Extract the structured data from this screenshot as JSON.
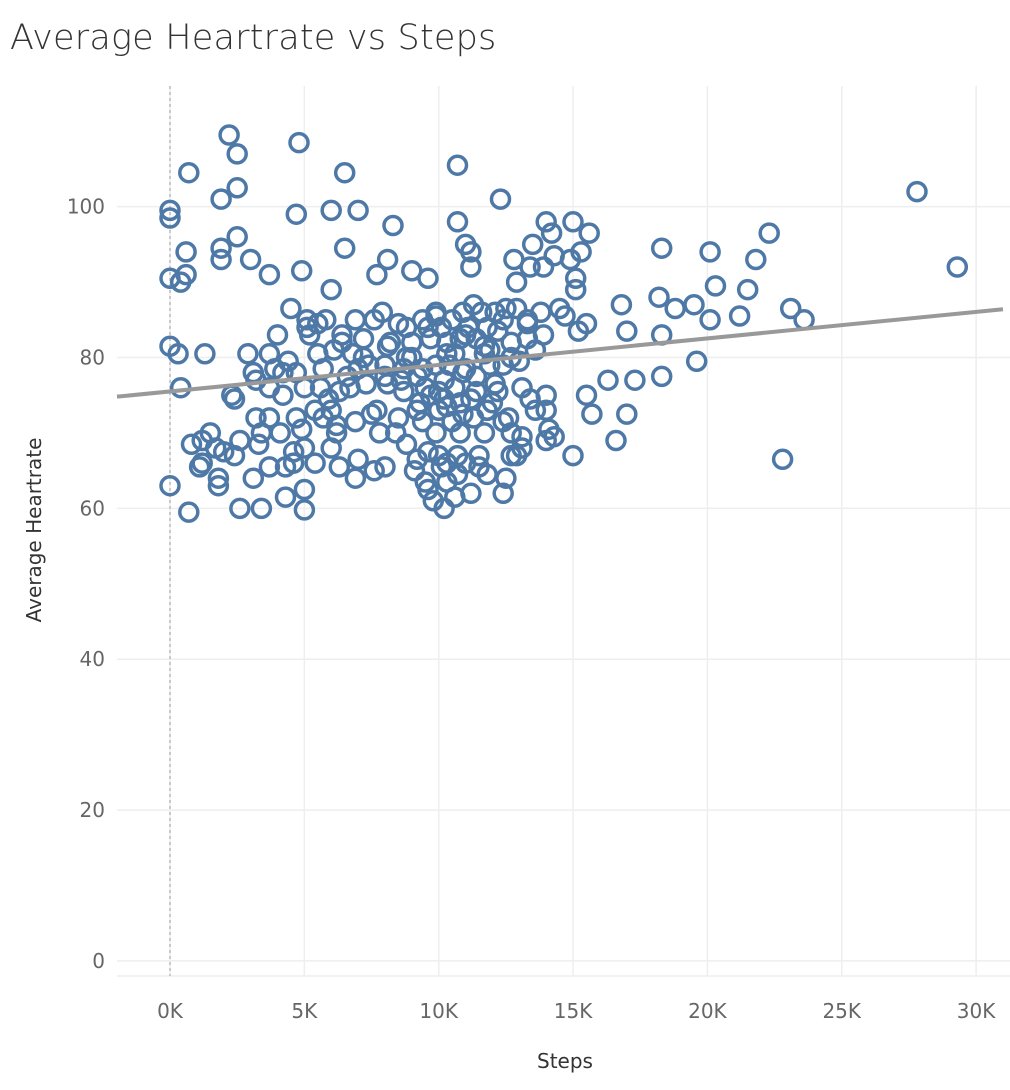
{
  "chart_data": {
    "type": "scatter",
    "title": "Average Heartrate vs Steps",
    "xlabel": "Steps",
    "ylabel": "Average Heartrate",
    "xlim": [
      -2000,
      31000
    ],
    "ylim": [
      -2,
      116
    ],
    "x_ticks": [
      {
        "value": 0,
        "label": "0K"
      },
      {
        "value": 5000,
        "label": "5K"
      },
      {
        "value": 10000,
        "label": "10K"
      },
      {
        "value": 15000,
        "label": "15K"
      },
      {
        "value": 20000,
        "label": "20K"
      },
      {
        "value": 25000,
        "label": "25K"
      },
      {
        "value": 30000,
        "label": "30K"
      }
    ],
    "y_ticks": [
      {
        "value": 0,
        "label": "0"
      },
      {
        "value": 20,
        "label": "20"
      },
      {
        "value": 40,
        "label": "40"
      },
      {
        "value": 60,
        "label": "60"
      },
      {
        "value": 80,
        "label": "80"
      },
      {
        "value": 100,
        "label": "100"
      }
    ],
    "grid": true,
    "zero_line_x": 0,
    "marker": "hollow-circle",
    "colors": {
      "marker": "#4e79a7",
      "trend": "#999999",
      "grid": "#eeeeee",
      "zero_line": "#bbbbbb"
    },
    "trend_line": [
      {
        "x": -2000,
        "y": 74.8
      },
      {
        "x": 31000,
        "y": 86.4
      }
    ],
    "points": [
      [
        2200,
        109.5
      ],
      [
        4800,
        108.5
      ],
      [
        2500,
        107
      ],
      [
        6500,
        104.5
      ],
      [
        700,
        104.5
      ],
      [
        10700,
        105.5
      ],
      [
        27800,
        102
      ],
      [
        2500,
        102.5
      ],
      [
        1900,
        101
      ],
      [
        12300,
        101
      ],
      [
        0,
        99.5
      ],
      [
        0,
        98.5
      ],
      [
        4700,
        99
      ],
      [
        6000,
        99.5
      ],
      [
        7000,
        99.5
      ],
      [
        10700,
        98
      ],
      [
        8300,
        97.5
      ],
      [
        14000,
        98
      ],
      [
        15000,
        98
      ],
      [
        2500,
        96
      ],
      [
        14200,
        96.5
      ],
      [
        15600,
        96.5
      ],
      [
        22300,
        96.5
      ],
      [
        11000,
        95
      ],
      [
        13500,
        95
      ],
      [
        600,
        94
      ],
      [
        1900,
        94.5
      ],
      [
        6500,
        94.5
      ],
      [
        1900,
        93
      ],
      [
        3000,
        93
      ],
      [
        8100,
        93
      ],
      [
        11200,
        94
      ],
      [
        12800,
        93
      ],
      [
        14300,
        93.5
      ],
      [
        15300,
        94
      ],
      [
        18300,
        94.5
      ],
      [
        20100,
        94
      ],
      [
        11200,
        92
      ],
      [
        13400,
        92
      ],
      [
        13900,
        92
      ],
      [
        14900,
        93
      ],
      [
        21800,
        93
      ],
      [
        29300,
        92
      ],
      [
        3700,
        91
      ],
      [
        4900,
        91.5
      ],
      [
        7700,
        91
      ],
      [
        9000,
        91.5
      ],
      [
        9600,
        90.5
      ],
      [
        0,
        90.5
      ],
      [
        400,
        90
      ],
      [
        600,
        91
      ],
      [
        15100,
        90.5
      ],
      [
        12900,
        90
      ],
      [
        15100,
        89
      ],
      [
        20300,
        89.5
      ],
      [
        21500,
        89
      ],
      [
        6000,
        89
      ],
      [
        4500,
        86.5
      ],
      [
        11300,
        87
      ],
      [
        11600,
        86
      ],
      [
        12500,
        86.5
      ],
      [
        12900,
        86.5
      ],
      [
        13800,
        86
      ],
      [
        14500,
        86.5
      ],
      [
        16800,
        87
      ],
      [
        18200,
        88
      ],
      [
        18800,
        86.5
      ],
      [
        19500,
        87
      ],
      [
        23100,
        86.5
      ],
      [
        5100,
        85
      ],
      [
        5500,
        84.5
      ],
      [
        5800,
        85
      ],
      [
        6900,
        85
      ],
      [
        7900,
        86
      ],
      [
        8500,
        84.5
      ],
      [
        9400,
        85
      ],
      [
        9900,
        85.5
      ],
      [
        10500,
        85
      ],
      [
        11100,
        84
      ],
      [
        12400,
        85
      ],
      [
        13300,
        84.5
      ],
      [
        15500,
        84.5
      ],
      [
        21200,
        85.5
      ],
      [
        20100,
        85
      ],
      [
        23600,
        85
      ],
      [
        3700,
        80.5
      ],
      [
        2900,
        80.5
      ],
      [
        1300,
        80.5
      ],
      [
        0,
        81.5
      ],
      [
        300,
        80.5
      ],
      [
        4000,
        83
      ],
      [
        5200,
        83
      ],
      [
        6400,
        82
      ],
      [
        7200,
        82.5
      ],
      [
        8200,
        82
      ],
      [
        9000,
        82
      ],
      [
        9700,
        82.5
      ],
      [
        10300,
        82
      ],
      [
        10800,
        82.5
      ],
      [
        11400,
        82.5
      ],
      [
        11900,
        81
      ],
      [
        12700,
        82
      ],
      [
        13300,
        82.5
      ],
      [
        13900,
        83
      ],
      [
        15200,
        83.5
      ],
      [
        17000,
        83.5
      ],
      [
        18300,
        83
      ],
      [
        19600,
        79.5
      ],
      [
        3200,
        77
      ],
      [
        3900,
        78.5
      ],
      [
        4400,
        79.5
      ],
      [
        4700,
        78
      ],
      [
        5700,
        78.5
      ],
      [
        6600,
        77.5
      ],
      [
        7400,
        79
      ],
      [
        8000,
        79
      ],
      [
        8700,
        78.5
      ],
      [
        9400,
        78.5
      ],
      [
        9900,
        79
      ],
      [
        10400,
        79
      ],
      [
        11000,
        78.5
      ],
      [
        11900,
        79
      ],
      [
        12400,
        79
      ],
      [
        13000,
        79.5
      ],
      [
        16300,
        77
      ],
      [
        17300,
        77
      ],
      [
        18300,
        77.5
      ],
      [
        400,
        76
      ],
      [
        2300,
        75
      ],
      [
        3700,
        76
      ],
      [
        4200,
        75
      ],
      [
        5000,
        76
      ],
      [
        5600,
        76
      ],
      [
        6300,
        75.5
      ],
      [
        7300,
        76.5
      ],
      [
        8100,
        76.5
      ],
      [
        8700,
        75.5
      ],
      [
        9500,
        76
      ],
      [
        10000,
        75.5
      ],
      [
        10600,
        76
      ],
      [
        11400,
        75.5
      ],
      [
        12200,
        75.5
      ],
      [
        14000,
        75
      ],
      [
        15500,
        75
      ],
      [
        2400,
        74.5
      ],
      [
        5400,
        73
      ],
      [
        6000,
        73
      ],
      [
        7500,
        72.5
      ],
      [
        8500,
        72
      ],
      [
        9200,
        73
      ],
      [
        10000,
        73
      ],
      [
        10900,
        72.5
      ],
      [
        11800,
        73
      ],
      [
        12600,
        72
      ],
      [
        13600,
        73
      ],
      [
        14000,
        73
      ],
      [
        15700,
        72.5
      ],
      [
        17000,
        72.5
      ],
      [
        3700,
        72
      ],
      [
        1500,
        70
      ],
      [
        1200,
        69
      ],
      [
        2600,
        69
      ],
      [
        3400,
        70
      ],
      [
        4100,
        70
      ],
      [
        4900,
        70.5
      ],
      [
        6200,
        70
      ],
      [
        7800,
        70
      ],
      [
        8400,
        70
      ],
      [
        9900,
        70
      ],
      [
        10800,
        70
      ],
      [
        11700,
        70
      ],
      [
        12700,
        70
      ],
      [
        13100,
        69.5
      ],
      [
        14300,
        69.5
      ],
      [
        16600,
        69
      ],
      [
        800,
        68.5
      ],
      [
        1700,
        68
      ],
      [
        3300,
        68.5
      ],
      [
        5000,
        68
      ],
      [
        6000,
        68
      ],
      [
        8800,
        68.5
      ],
      [
        9600,
        67.5
      ],
      [
        10700,
        67
      ],
      [
        11500,
        67
      ],
      [
        12900,
        67
      ],
      [
        15000,
        67
      ],
      [
        22800,
        66.5
      ],
      [
        1200,
        66
      ],
      [
        2400,
        67
      ],
      [
        3700,
        65.5
      ],
      [
        4600,
        66
      ],
      [
        5400,
        66
      ],
      [
        6300,
        65.5
      ],
      [
        7000,
        66.5
      ],
      [
        8000,
        65.5
      ],
      [
        9100,
        65
      ],
      [
        10100,
        65.5
      ],
      [
        11000,
        66
      ],
      [
        11500,
        65.5
      ],
      [
        12700,
        67
      ],
      [
        1800,
        64
      ],
      [
        3100,
        64
      ],
      [
        5000,
        62.5
      ],
      [
        6900,
        64
      ],
      [
        7600,
        65
      ],
      [
        9500,
        63.5
      ],
      [
        10300,
        63.5
      ],
      [
        10700,
        64.5
      ],
      [
        11800,
        64.5
      ],
      [
        12500,
        64
      ],
      [
        1800,
        63
      ],
      [
        4300,
        61.5
      ],
      [
        9600,
        62.5
      ],
      [
        10600,
        61.5
      ],
      [
        11200,
        62
      ],
      [
        12400,
        62
      ],
      [
        2600,
        60
      ],
      [
        3400,
        60
      ],
      [
        5000,
        59.8
      ],
      [
        9800,
        61
      ],
      [
        10200,
        60
      ],
      [
        0,
        63
      ],
      [
        700,
        59.5
      ],
      [
        1100,
        65.5
      ],
      [
        6700,
        76
      ],
      [
        7700,
        73
      ],
      [
        9000,
        80
      ],
      [
        10200,
        77
      ],
      [
        11400,
        77.5
      ],
      [
        12100,
        76.5
      ],
      [
        13100,
        76
      ],
      [
        14000,
        69
      ],
      [
        10300,
        66
      ],
      [
        9400,
        71.5
      ],
      [
        10500,
        71.5
      ],
      [
        11300,
        72
      ],
      [
        5700,
        72
      ],
      [
        6200,
        71
      ],
      [
        4700,
        72
      ],
      [
        3200,
        72
      ],
      [
        8100,
        81.5
      ],
      [
        8800,
        80
      ],
      [
        10300,
        80.5
      ],
      [
        11700,
        80.5
      ],
      [
        12700,
        80
      ],
      [
        6800,
        80.5
      ],
      [
        7200,
        80
      ],
      [
        9600,
        84
      ],
      [
        10100,
        84
      ],
      [
        11000,
        83
      ],
      [
        11800,
        84
      ],
      [
        5500,
        80.5
      ],
      [
        4200,
        78
      ],
      [
        3100,
        78
      ],
      [
        6100,
        81
      ],
      [
        13100,
        68
      ],
      [
        12400,
        71.5
      ],
      [
        9700,
        75
      ],
      [
        10200,
        74.5
      ],
      [
        11200,
        74.5
      ],
      [
        11800,
        73
      ],
      [
        13400,
        74.5
      ],
      [
        14100,
        70.5
      ],
      [
        6900,
        71.5
      ],
      [
        5900,
        74.5
      ],
      [
        9200,
        66.5
      ],
      [
        10000,
        67
      ],
      [
        4300,
        65.5
      ],
      [
        2000,
        67.5
      ],
      [
        4600,
        67.5
      ],
      [
        8000,
        77.5
      ],
      [
        10900,
        78
      ],
      [
        13600,
        81
      ],
      [
        7000,
        78.5
      ],
      [
        8600,
        77
      ],
      [
        9200,
        77.5
      ],
      [
        10600,
        80.5
      ],
      [
        11700,
        81.5
      ],
      [
        12200,
        83.5
      ],
      [
        13300,
        85
      ],
      [
        14700,
        85.5
      ],
      [
        5100,
        84
      ],
      [
        6400,
        83
      ],
      [
        7600,
        85
      ],
      [
        8800,
        84
      ],
      [
        9900,
        86
      ],
      [
        10900,
        86
      ],
      [
        12100,
        86
      ],
      [
        9300,
        74
      ],
      [
        10300,
        73.5
      ],
      [
        10800,
        74
      ],
      [
        12000,
        74
      ]
    ]
  }
}
